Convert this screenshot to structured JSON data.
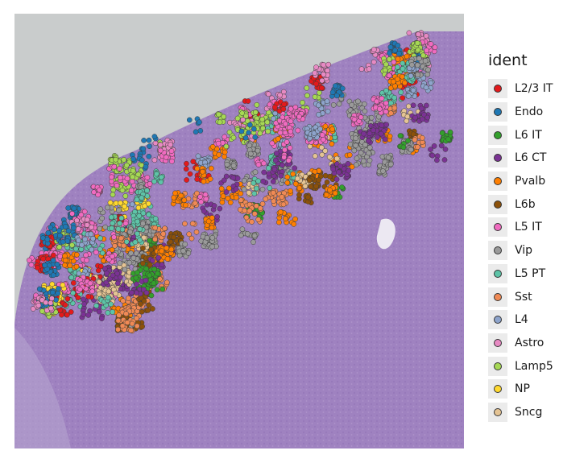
{
  "chart_data": {
    "type": "scatter",
    "title": "",
    "xlabel": "",
    "ylabel": "",
    "grid": false,
    "legend": {
      "title": "ident",
      "placement": "right",
      "entries": [
        {
          "label": "L2/3 IT",
          "color": "#e31a1c"
        },
        {
          "label": "Endo",
          "color": "#1f78b4"
        },
        {
          "label": "L6 IT",
          "color": "#33a02c"
        },
        {
          "label": "L6 CT",
          "color": "#7b3294"
        },
        {
          "label": "Pvalb",
          "color": "#ff7f00"
        },
        {
          "label": "L6b",
          "color": "#8c510a"
        },
        {
          "label": "L5 IT",
          "color": "#f06bc0"
        },
        {
          "label": "Vip",
          "color": "#9a9a9a"
        },
        {
          "label": "L5 PT",
          "color": "#5ec4a8"
        },
        {
          "label": "Sst",
          "color": "#f08a55"
        },
        {
          "label": "L4",
          "color": "#8ea4cc"
        },
        {
          "label": "Astro",
          "color": "#e78ac3"
        },
        {
          "label": "Lamp5",
          "color": "#a6d854"
        },
        {
          "label": "NP",
          "color": "#ffd92f"
        },
        {
          "label": "Sncg",
          "color": "#e5c494"
        }
      ]
    },
    "background": {
      "tissue_color": "#9f82c0",
      "slide_color": "#c9cccc"
    }
  }
}
